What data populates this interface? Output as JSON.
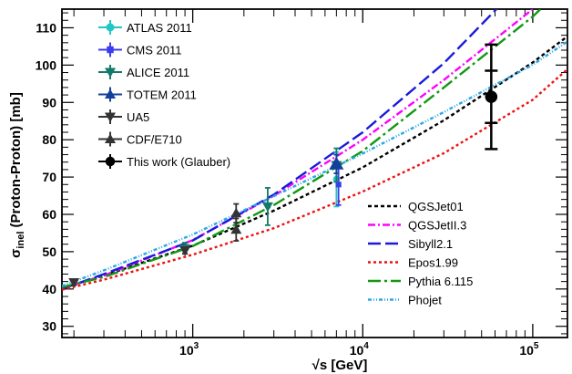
{
  "chart_data": {
    "type": "scatter",
    "title": "",
    "xlabel": "√s   [GeV]",
    "ylabel": "σ_inel (Proton-Proton)   [mb]",
    "x_scale": "log",
    "xlim": [
      170,
      160000
    ],
    "ylim": [
      27,
      115
    ],
    "x_tick_labels": [
      {
        "value": 1000,
        "mantissa": "10",
        "exp": "3"
      },
      {
        "value": 10000,
        "mantissa": "10",
        "exp": "4"
      },
      {
        "value": 100000,
        "mantissa": "10",
        "exp": "5"
      }
    ],
    "y_ticks": [
      30,
      40,
      50,
      60,
      70,
      80,
      90,
      100,
      110
    ],
    "grid": false,
    "legend_placement": "top-left and bottom-right",
    "data_series": [
      {
        "name": "ATLAS 2011",
        "color": "#22c6c6",
        "marker": "circle",
        "points": [
          {
            "x": 7000,
            "y": 69.4,
            "err": 7.3
          }
        ]
      },
      {
        "name": "CMS 2011",
        "color": "#3b3bf0",
        "marker": "square",
        "points": [
          {
            "x": 7200,
            "y": 68.0,
            "err": 5.5
          }
        ]
      },
      {
        "name": "ALICE 2011",
        "color": "#127a6a",
        "marker": "triangle-down",
        "points": [
          {
            "x": 900,
            "y": 50.9,
            "err": 1.5
          },
          {
            "x": 2760,
            "y": 62.1,
            "err": 5.0
          },
          {
            "x": 7000,
            "y": 73.2,
            "err": 4.5
          }
        ]
      },
      {
        "name": "TOTEM 2011",
        "color": "#13409a",
        "marker": "triangle-up",
        "points": [
          {
            "x": 7000,
            "y": 73.5,
            "err": 2.5
          }
        ]
      },
      {
        "name": "UA5",
        "color": "#333333",
        "marker": "triangle-down",
        "points": [
          {
            "x": 200,
            "y": 41.8,
            "err": 0.8
          },
          {
            "x": 900,
            "y": 50.3,
            "err": 0.8
          }
        ]
      },
      {
        "name": "CDF/E710",
        "color": "#333333",
        "marker": "triangle-up",
        "points": [
          {
            "x": 1800,
            "y": 55.9,
            "err": 3.0
          },
          {
            "x": 1800,
            "y": 60.3,
            "err": 2.5
          }
        ]
      },
      {
        "name": "This work (Glauber)",
        "color": "#000000",
        "marker": "circle",
        "points": [
          {
            "x": 57000,
            "y": 91.5,
            "err": 14.0,
            "err_inner": 7.0
          }
        ]
      }
    ],
    "model_curves": [
      {
        "name": "QGSJet01",
        "color": "#000000",
        "dash": "4,3",
        "x": [
          170,
          300,
          1000,
          3000,
          10000,
          30000,
          100000,
          160000
        ],
        "y": [
          40.2,
          43.6,
          51.6,
          61.0,
          72.6,
          85.2,
          100.7,
          107.7
        ]
      },
      {
        "name": "QGSJetII.3",
        "color": "#ff00ff",
        "dash": "8,3,2,3",
        "x": [
          170,
          300,
          1000,
          3000,
          10000,
          30000,
          100000,
          160000
        ],
        "y": [
          40.2,
          43.6,
          53.1,
          65.0,
          80.0,
          96.0,
          115.0,
          122.0
        ]
      },
      {
        "name": "Sibyll2.1",
        "color": "#1a1adc",
        "dash": "14,5",
        "x": [
          170,
          300,
          1000,
          3000,
          10000,
          30000,
          100000
        ],
        "y": [
          40.0,
          44.0,
          53.0,
          65.3,
          82.0,
          100.5,
          125.0
        ]
      },
      {
        "name": "Epos1.99",
        "color": "#ee1111",
        "dash": "3,3",
        "x": [
          170,
          300,
          1000,
          3000,
          10000,
          30000,
          100000,
          160000
        ],
        "y": [
          39.8,
          42.5,
          49.2,
          56.3,
          66.1,
          76.4,
          90.7,
          98.9
        ]
      },
      {
        "name": "Pythia 6.115",
        "color": "#119911",
        "dash": "14,4,3,4",
        "x": [
          170,
          300,
          1000,
          3000,
          10000,
          30000,
          100000,
          160000
        ],
        "y": [
          40.5,
          43.2,
          51.5,
          62.5,
          77.0,
          94.0,
          113.0,
          122.0
        ]
      },
      {
        "name": "Phojet",
        "color": "#2aa7e6",
        "dash": "4,2,1,2,1,2",
        "x": [
          170,
          300,
          1000,
          3000,
          10000,
          30000,
          100000,
          160000
        ],
        "y": [
          40.8,
          45.0,
          54.6,
          64.9,
          76.3,
          87.4,
          100.1,
          106.3
        ]
      }
    ]
  }
}
